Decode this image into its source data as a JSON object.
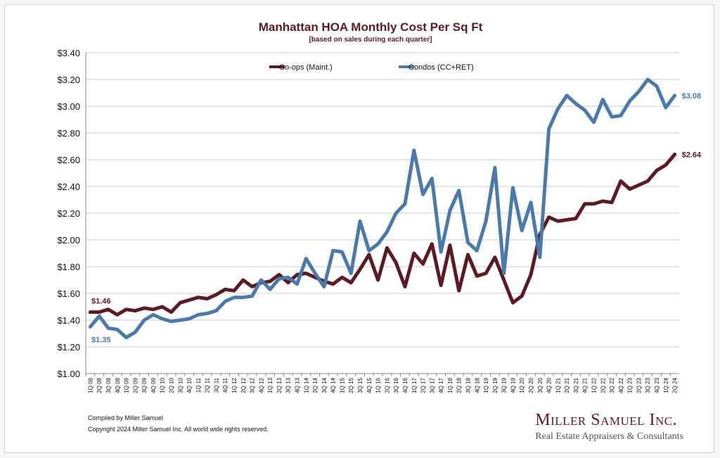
{
  "chart_data": {
    "type": "line",
    "title": "Manhattan HOA Monthly Cost Per Sq Ft",
    "subtitle": "[based on sales during each quarter]",
    "ylim": [
      1.0,
      3.4
    ],
    "yticks": [
      "$1.00",
      "$1.20",
      "$1.40",
      "$1.60",
      "$1.80",
      "$2.00",
      "$2.20",
      "$2.40",
      "$2.60",
      "$2.80",
      "$3.00",
      "$3.20",
      "$3.40"
    ],
    "grid": true,
    "legend_position": "top",
    "categories": [
      "1Q 08",
      "2Q 08",
      "3Q 08",
      "4Q 08",
      "1Q 09",
      "2Q 09",
      "3Q 09",
      "4Q 09",
      "1Q 10",
      "2Q 10",
      "3Q 10",
      "4Q 10",
      "1Q 11",
      "2Q 11",
      "3Q 11",
      "4Q 11",
      "1Q 12",
      "2Q 12",
      "3Q 12",
      "4Q 12",
      "1Q 13",
      "2Q 13",
      "3Q 13",
      "4Q 13",
      "1Q 14",
      "2Q 14",
      "3Q 14",
      "4Q 14",
      "1Q 15",
      "2Q 15",
      "3Q 15",
      "4Q 15",
      "1Q 16",
      "2Q 16",
      "3Q 16",
      "4Q 16",
      "1Q 17",
      "2Q 17",
      "3Q 17",
      "4Q 17",
      "1Q 18",
      "2Q 18",
      "3Q 18",
      "4Q 18",
      "1Q 19",
      "2Q 19",
      "3Q 19",
      "4Q 19",
      "1Q 20",
      "2Q 20",
      "3Q 20",
      "4Q 20",
      "1Q 21",
      "2Q 21",
      "3Q 21",
      "4Q 21",
      "1Q 22",
      "2Q 22",
      "3Q 22",
      "4Q 22",
      "1Q 23",
      "2Q 23",
      "3Q 23",
      "4Q 23",
      "1Q 24",
      "2Q 24"
    ],
    "series": [
      {
        "name": "Co-ops (Maint.)",
        "color": "#5c1a22",
        "values": [
          1.46,
          1.46,
          1.48,
          1.44,
          1.48,
          1.47,
          1.49,
          1.48,
          1.5,
          1.46,
          1.53,
          1.55,
          1.57,
          1.56,
          1.59,
          1.63,
          1.62,
          1.7,
          1.65,
          1.68,
          1.69,
          1.74,
          1.68,
          1.74,
          1.75,
          1.72,
          1.69,
          1.67,
          1.72,
          1.68,
          1.78,
          1.89,
          1.7,
          1.94,
          1.83,
          1.65,
          1.9,
          1.82,
          1.97,
          1.66,
          1.96,
          1.62,
          1.89,
          1.73,
          1.75,
          1.87,
          1.7,
          1.53,
          1.58,
          1.74,
          2.04,
          2.17,
          2.14,
          2.15,
          2.16,
          2.27,
          2.27,
          2.29,
          2.28,
          2.44,
          2.38,
          2.41,
          2.44,
          2.52,
          2.56,
          2.64
        ],
        "start_label": "$1.46",
        "end_label": "$2.64"
      },
      {
        "name": "Condos (CC+RET)",
        "color": "#4a7aab",
        "values": [
          1.35,
          1.43,
          1.34,
          1.33,
          1.27,
          1.31,
          1.4,
          1.44,
          1.41,
          1.39,
          1.4,
          1.41,
          1.44,
          1.45,
          1.47,
          1.54,
          1.57,
          1.57,
          1.58,
          1.7,
          1.63,
          1.71,
          1.72,
          1.67,
          1.86,
          1.75,
          1.65,
          1.92,
          1.91,
          1.75,
          2.14,
          1.92,
          1.97,
          2.06,
          2.2,
          2.27,
          2.67,
          2.34,
          2.46,
          1.91,
          2.22,
          2.37,
          1.98,
          1.92,
          2.14,
          2.54,
          1.75,
          2.39,
          2.07,
          2.28,
          1.87,
          2.83,
          2.98,
          3.08,
          3.02,
          2.97,
          2.88,
          3.05,
          2.92,
          2.93,
          3.04,
          3.11,
          3.2,
          3.15,
          2.99,
          3.08
        ],
        "start_label": "$1.35",
        "end_label": "$3.08"
      }
    ]
  },
  "footer": {
    "compiled_by": "Compiled by Miller Samuel",
    "copyright": "Copyright 2024 Miller Samuel Inc.  All world wide rights reserved."
  },
  "brand": {
    "name": "Miller Samuel Inc.",
    "tagline": "Real Estate Appraisers & Consultants"
  }
}
